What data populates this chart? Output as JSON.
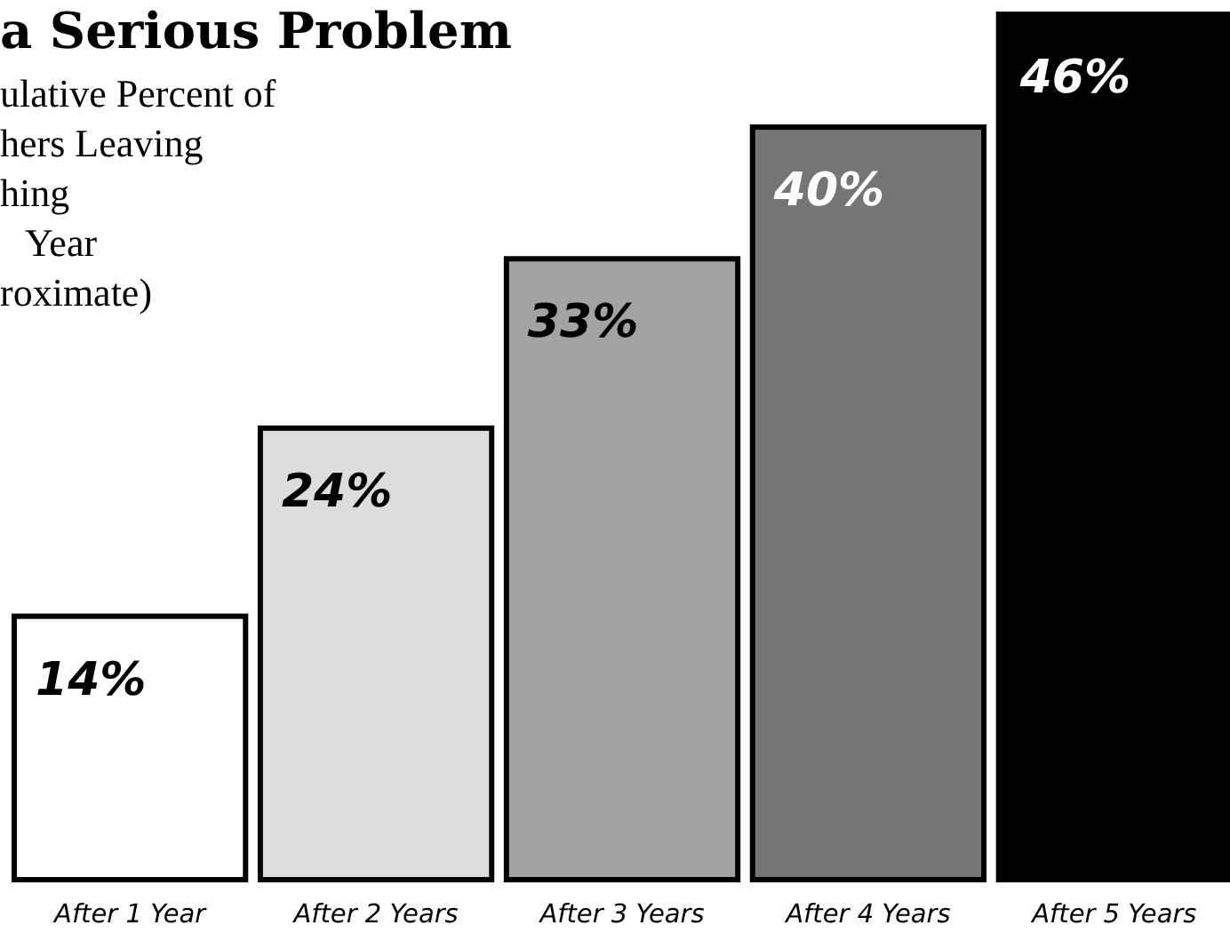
{
  "chart_data": {
    "type": "bar",
    "title": "a Serious Problem",
    "subtitle": "ulative Percent of\nhers Leaving\nhing\nYear\nroximate)",
    "categories": [
      "After 1 Year",
      "After 2 Years",
      "After 3 Years",
      "After 4 Years",
      "After 5 Years"
    ],
    "values": [
      14,
      24,
      33,
      40,
      46
    ],
    "value_labels": [
      "14%",
      "24%",
      "33%",
      "40%",
      "46%"
    ],
    "colors": [
      "#ffffff",
      "#dddddd",
      "#a3a3a3",
      "#757575",
      "#000000"
    ]
  }
}
